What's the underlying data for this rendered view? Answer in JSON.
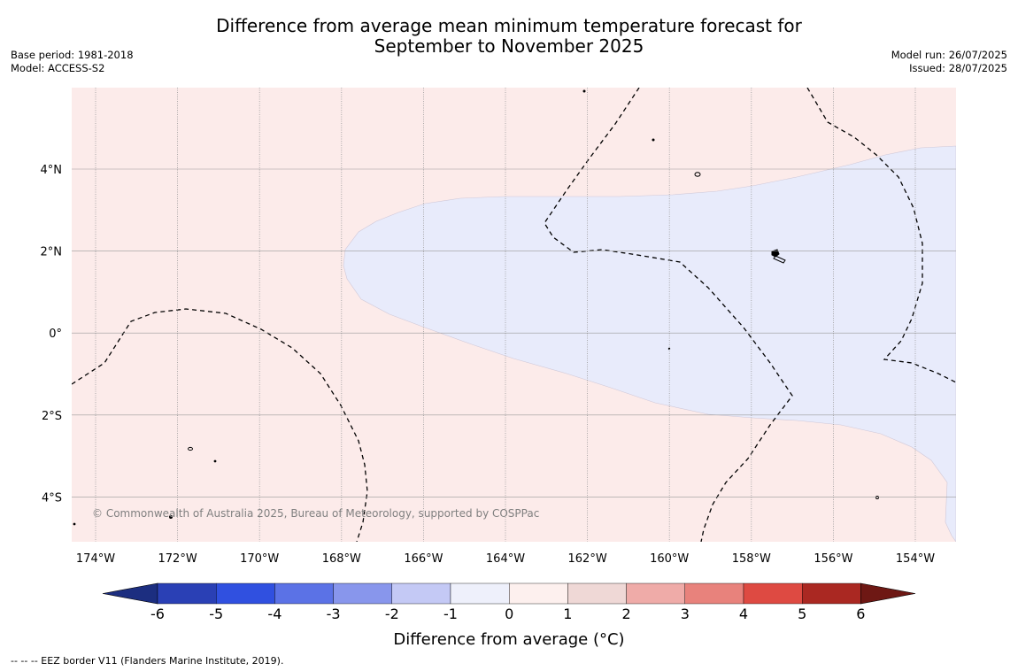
{
  "title": {
    "line1": "Difference from average mean minimum temperature forecast for",
    "line2": "September to November 2025"
  },
  "meta_left": {
    "base_period": "Base period: 1981-2018",
    "model": "Model: ACCESS-S2"
  },
  "meta_right": {
    "model_run": "Model run: 26/07/2025",
    "issued": "Issued: 28/07/2025"
  },
  "map": {
    "lon_labels": [
      "174°W",
      "172°W",
      "170°W",
      "168°W",
      "166°W",
      "164°W",
      "162°W",
      "160°W",
      "158°W",
      "156°W",
      "154°W"
    ],
    "lat_labels": [
      "4°N",
      "2°N",
      "0°",
      "2°S",
      "4°S"
    ],
    "copyright": "© Commonwealth of Australia 2025, Bureau of Meteorology, supported by COSPPac",
    "colors": {
      "anomaly_0_to_1": "#fcebea",
      "anomaly_minus1_to_0": "#e8ebfb",
      "gridline": "#9a9a9a",
      "eez_border": "#000000"
    }
  },
  "colorbar": {
    "label": "Difference from average (°C)",
    "ticks": [
      "-6",
      "-5",
      "-4",
      "-3",
      "-2",
      "-1",
      "0",
      "1",
      "2",
      "3",
      "4",
      "5",
      "6"
    ],
    "colors": [
      "#1c2e80",
      "#2a40b5",
      "#3050e0",
      "#5b72e6",
      "#8896ec",
      "#c4c9f5",
      "#eef0fb",
      "#fdf0ee",
      "#efd8d6",
      "#efaba8",
      "#e8827c",
      "#de4a42",
      "#aa2822",
      "#6e1814"
    ]
  },
  "footer": {
    "legend_text": "--  --  -- EEZ border V11 (Flanders Marine Institute, 2019)."
  }
}
